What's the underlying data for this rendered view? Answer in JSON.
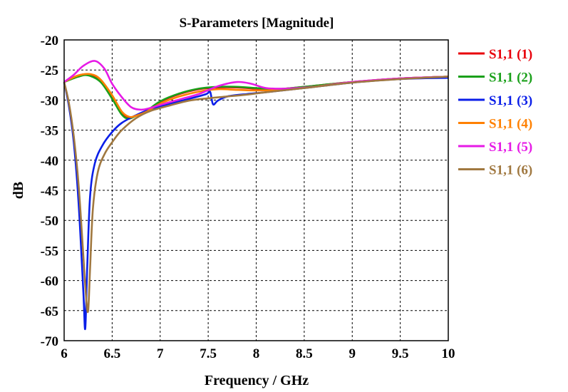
{
  "chart_data": {
    "type": "line",
    "title": "S-Parameters [Magnitude]",
    "xlabel": "Frequency / GHz",
    "ylabel": "dB",
    "xlim": [
      6,
      10
    ],
    "ylim": [
      -70,
      -20
    ],
    "x_ticks": [
      6,
      6.5,
      7,
      7.5,
      8,
      8.5,
      9,
      9.5,
      10
    ],
    "x_tick_labels": [
      "6",
      "6.5",
      "7",
      "7.5",
      "8",
      "8.5",
      "9",
      "9.5",
      "10"
    ],
    "y_ticks": [
      -20,
      -25,
      -30,
      -35,
      -40,
      -45,
      -50,
      -55,
      -60,
      -65,
      -70
    ],
    "y_tick_labels": [
      "-20",
      "-25",
      "-30",
      "-35",
      "-40",
      "-45",
      "-50",
      "-55",
      "-60",
      "-65",
      "-70"
    ],
    "grid": true,
    "legend_position": "right",
    "series": [
      {
        "name": "S1,1 (1)",
        "color": "#e8000b",
        "points": [
          [
            6,
            -27
          ],
          [
            6.15,
            -25.9
          ],
          [
            6.28,
            -25.8
          ],
          [
            6.38,
            -26.8
          ],
          [
            6.5,
            -29.5
          ],
          [
            6.6,
            -32.2
          ],
          [
            6.67,
            -33
          ],
          [
            6.75,
            -32.6
          ],
          [
            6.85,
            -31.9
          ],
          [
            7,
            -30.3
          ],
          [
            7.2,
            -29
          ],
          [
            7.4,
            -28.2
          ],
          [
            7.6,
            -27.9
          ],
          [
            7.8,
            -27.9
          ],
          [
            8,
            -28.1
          ],
          [
            8.2,
            -28.2
          ],
          [
            8.5,
            -27.8
          ],
          [
            9,
            -27
          ],
          [
            9.5,
            -26.4
          ],
          [
            10,
            -26.1
          ]
        ]
      },
      {
        "name": "S1,1 (2)",
        "color": "#1aa01a",
        "points": [
          [
            6,
            -27
          ],
          [
            6.15,
            -26.1
          ],
          [
            6.25,
            -25.9
          ],
          [
            6.38,
            -27
          ],
          [
            6.5,
            -29.8
          ],
          [
            6.6,
            -32.4
          ],
          [
            6.67,
            -33.1
          ],
          [
            6.75,
            -32.6
          ],
          [
            6.85,
            -31.9
          ],
          [
            7,
            -30.2
          ],
          [
            7.2,
            -28.9
          ],
          [
            7.4,
            -28.1
          ],
          [
            7.6,
            -27.8
          ],
          [
            7.8,
            -27.8
          ],
          [
            8,
            -28
          ],
          [
            8.2,
            -28.2
          ],
          [
            8.5,
            -27.8
          ],
          [
            9,
            -27
          ],
          [
            9.5,
            -26.4
          ],
          [
            10,
            -26.1
          ]
        ]
      },
      {
        "name": "S1,1 (3)",
        "color": "#0a1ee8",
        "points": [
          [
            6,
            -27
          ],
          [
            6.05,
            -31
          ],
          [
            6.1,
            -37
          ],
          [
            6.15,
            -47
          ],
          [
            6.2,
            -62
          ],
          [
            6.22,
            -68
          ],
          [
            6.24,
            -58
          ],
          [
            6.27,
            -46
          ],
          [
            6.32,
            -40.5
          ],
          [
            6.4,
            -37.5
          ],
          [
            6.5,
            -35.3
          ],
          [
            6.6,
            -33.8
          ],
          [
            6.75,
            -32.5
          ],
          [
            6.9,
            -31.5
          ],
          [
            7.1,
            -30.6
          ],
          [
            7.3,
            -29.8
          ],
          [
            7.48,
            -29
          ],
          [
            7.52,
            -28.6
          ],
          [
            7.55,
            -30.7
          ],
          [
            7.6,
            -30.1
          ],
          [
            7.7,
            -29.4
          ],
          [
            7.9,
            -29
          ],
          [
            8.1,
            -28.7
          ],
          [
            8.5,
            -28
          ],
          [
            9,
            -27.1
          ],
          [
            9.5,
            -26.5
          ],
          [
            10,
            -26.3
          ]
        ]
      },
      {
        "name": "S1,1 (4)",
        "color": "#ff8000",
        "points": [
          [
            6,
            -27
          ],
          [
            6.15,
            -25.9
          ],
          [
            6.28,
            -25.7
          ],
          [
            6.38,
            -26.6
          ],
          [
            6.5,
            -29.2
          ],
          [
            6.6,
            -31.9
          ],
          [
            6.68,
            -32.8
          ],
          [
            6.75,
            -32.6
          ],
          [
            6.85,
            -32
          ],
          [
            7,
            -30.6
          ],
          [
            7.2,
            -29.4
          ],
          [
            7.4,
            -28.6
          ],
          [
            7.6,
            -28.2
          ],
          [
            7.8,
            -28.3
          ],
          [
            8,
            -28.4
          ],
          [
            8.3,
            -28.3
          ],
          [
            8.6,
            -27.8
          ],
          [
            9,
            -27
          ],
          [
            9.5,
            -26.4
          ],
          [
            10,
            -26.1
          ]
        ]
      },
      {
        "name": "S1,1 (5)",
        "color": "#e61ae6",
        "points": [
          [
            6,
            -27
          ],
          [
            6.1,
            -25.8
          ],
          [
            6.2,
            -24.3
          ],
          [
            6.32,
            -23.5
          ],
          [
            6.42,
            -24.8
          ],
          [
            6.5,
            -27.3
          ],
          [
            6.6,
            -29.5
          ],
          [
            6.7,
            -31.2
          ],
          [
            6.8,
            -31.6
          ],
          [
            6.9,
            -31.3
          ],
          [
            7,
            -30.8
          ],
          [
            7.2,
            -29.9
          ],
          [
            7.4,
            -29
          ],
          [
            7.6,
            -27.7
          ],
          [
            7.8,
            -27
          ],
          [
            7.95,
            -27.3
          ],
          [
            8.1,
            -28
          ],
          [
            8.3,
            -28.1
          ],
          [
            8.6,
            -27.8
          ],
          [
            9,
            -27
          ],
          [
            9.5,
            -26.4
          ],
          [
            10,
            -26.1
          ]
        ]
      },
      {
        "name": "S1,1 (6)",
        "color": "#a07840",
        "points": [
          [
            6,
            -27
          ],
          [
            6.05,
            -30.5
          ],
          [
            6.1,
            -36
          ],
          [
            6.15,
            -44
          ],
          [
            6.2,
            -56
          ],
          [
            6.23,
            -63
          ],
          [
            6.25,
            -65
          ],
          [
            6.27,
            -58
          ],
          [
            6.3,
            -48
          ],
          [
            6.35,
            -42
          ],
          [
            6.42,
            -39
          ],
          [
            6.5,
            -37
          ],
          [
            6.6,
            -35
          ],
          [
            6.75,
            -33
          ],
          [
            6.9,
            -31.8
          ],
          [
            7.1,
            -30.9
          ],
          [
            7.3,
            -30.1
          ],
          [
            7.5,
            -29.7
          ],
          [
            7.7,
            -29.4
          ],
          [
            7.9,
            -29.1
          ],
          [
            8.1,
            -28.7
          ],
          [
            8.5,
            -28
          ],
          [
            9,
            -27.1
          ],
          [
            9.5,
            -26.5
          ],
          [
            10,
            -26.1
          ]
        ]
      }
    ]
  }
}
